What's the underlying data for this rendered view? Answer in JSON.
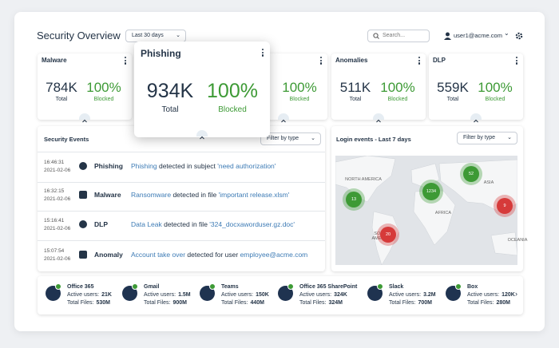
{
  "header": {
    "title": "Security Overview",
    "date_range": "Last 30 days",
    "search_placeholder": "Search...",
    "user": "user1@acme.com"
  },
  "metric_cards": [
    {
      "title": "Malware",
      "value": "784K",
      "value_label": "Total",
      "percent": "100%",
      "percent_label": "Blocked"
    },
    {
      "percent": "100%",
      "percent_label": "Blocked"
    },
    {
      "title": "Anomalies",
      "value": "511K",
      "value_label": "Total",
      "percent": "100%",
      "percent_label": "Blocked"
    },
    {
      "title": "DLP",
      "value": "559K",
      "value_label": "Total",
      "percent": "100%",
      "percent_label": "Blocked"
    }
  ],
  "popup": {
    "title": "Phishing",
    "value": "934K",
    "value_label": "Total",
    "percent": "100%",
    "percent_label": "Blocked"
  },
  "security_events": {
    "title": "Security Events",
    "filter": "Filter by type",
    "rows": [
      {
        "time": "16:46:31",
        "date": "2021-02-06",
        "type": "Phishing",
        "description": [
          {
            "text": "Phishing",
            "link": true
          },
          {
            "text": " detected in subject "
          },
          {
            "text": "'need authorization'",
            "link": true
          }
        ]
      },
      {
        "time": "16:32:15",
        "date": "2021-02-06",
        "type": "Malware",
        "description": [
          {
            "text": "Ransomware",
            "link": true
          },
          {
            "text": " detected in file "
          },
          {
            "text": "'important release.xlsm'",
            "link": true
          }
        ]
      },
      {
        "time": "15:16:41",
        "date": "2021-02-06",
        "type": "DLP",
        "description": [
          {
            "text": "Data Leak",
            "link": true
          },
          {
            "text": " detected in file "
          },
          {
            "text": "'324_docxaworduser.gz.doc'",
            "link": true
          }
        ]
      },
      {
        "time": "15:07:54",
        "date": "2021-02-06",
        "type": "Anomaly",
        "description": [
          {
            "text": "Account take over",
            "link": true
          },
          {
            "text": " detected for user "
          },
          {
            "text": "employee@acme.com",
            "link": true
          }
        ]
      }
    ]
  },
  "login_events": {
    "title": "Login events - Last 7 days",
    "filter": "Filter by type",
    "map_labels": [
      "NORTH AMERICA",
      "AFRICA",
      "ASIA",
      "SOUTH AMERICA",
      "OCEANIA"
    ],
    "clusters": [
      {
        "label": "13",
        "color": "#3d9a35"
      },
      {
        "label": "1234",
        "color": "#3d9a35"
      },
      {
        "label": "52",
        "color": "#3d9a35"
      },
      {
        "label": "9",
        "color": "#d63a3a"
      },
      {
        "label": "20",
        "color": "#d63a3a"
      }
    ]
  },
  "integrations": [
    {
      "name": "Office 365",
      "active_label": "Active users:",
      "active": "21K",
      "files_label": "Total Files:",
      "files": "530M"
    },
    {
      "name": "Gmail",
      "active_label": "Active users:",
      "active": "1.5M",
      "files_label": "Total Files:",
      "files": "900M"
    },
    {
      "name": "Teams",
      "active_label": "Active users:",
      "active": "150K",
      "files_label": "Total Files:",
      "files": "440M"
    },
    {
      "name": "Office 365 SharePoint",
      "active_label": "Active users:",
      "active": "324K",
      "files_label": "Total Files:",
      "files": "324M"
    },
    {
      "name": "Slack",
      "active_label": "Active users:",
      "active": "3.2M",
      "files_label": "Total Files:",
      "files": "700M"
    },
    {
      "name": "Box",
      "active_label": "Active users:",
      "active": "120K",
      "files_label": "Total Files:",
      "files": "280M"
    }
  ]
}
